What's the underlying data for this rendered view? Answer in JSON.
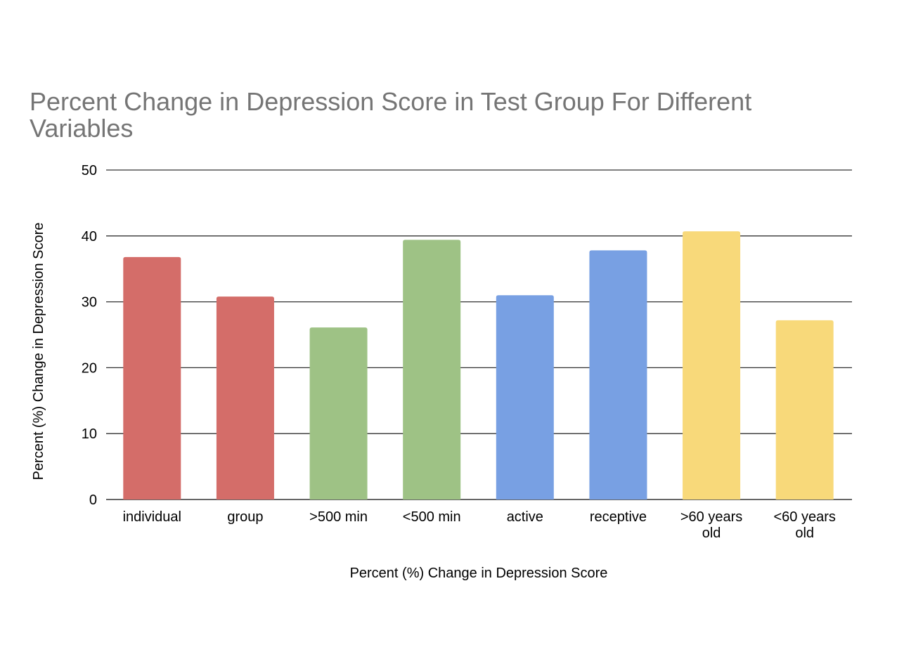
{
  "chart_data": {
    "type": "bar",
    "title": "Percent Change in Depression Score in Test Group For Different Variables",
    "xlabel": "Percent (%) Change in Depression Score",
    "ylabel": "Percent (%) Change in Depression Score",
    "categories": [
      [
        "individual"
      ],
      [
        "group"
      ],
      [
        ">500 min"
      ],
      [
        "<500 min"
      ],
      [
        "active"
      ],
      [
        "receptive"
      ],
      [
        ">60 years",
        "old"
      ],
      [
        "<60 years",
        "old"
      ]
    ],
    "values": [
      36.8,
      30.8,
      26.1,
      39.4,
      31.0,
      37.8,
      40.7,
      27.2
    ],
    "bar_colors": [
      "#d46d69",
      "#d46d69",
      "#9ec285",
      "#9ec285",
      "#78a0e3",
      "#78a0e3",
      "#f8d97a",
      "#f8d97a"
    ],
    "ylim": [
      0,
      50
    ],
    "yticks": [
      0,
      10,
      20,
      30,
      40,
      50
    ],
    "grid": true,
    "legend": "none",
    "gridline_color": "#333333",
    "title_color": "#757575"
  }
}
